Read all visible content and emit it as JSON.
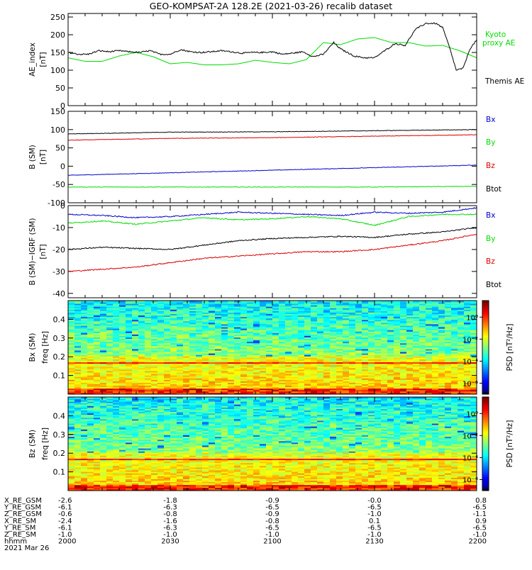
{
  "chart_data": {
    "title": "GEO-KOMPSAT-2A 128.2E (2021-03-26) recalib dataset",
    "x_tick_labels": [
      "2000",
      "2030",
      "2100",
      "2130",
      "2200"
    ],
    "panels": [
      {
        "type": "line",
        "ylabel": [
          "AE_index",
          "[nT]"
        ],
        "ylim": [
          0,
          260
        ],
        "yticks": [
          0,
          50,
          100,
          150,
          200,
          250
        ],
        "series": [
          {
            "name": "Kyoto proxy AE",
            "color": "#00dd00",
            "x": [
              0,
              5,
              10,
              15,
              20,
              25,
              30,
              35,
              40,
              45,
              50,
              55,
              60,
              65,
              70,
              75,
              80,
              85,
              90,
              95,
              100,
              105,
              110,
              115,
              120
            ],
            "values": [
              135,
              125,
              125,
              140,
              150,
              138,
              118,
              122,
              115,
              115,
              118,
              128,
              122,
              118,
              130,
              178,
              172,
              188,
              192,
              178,
              178,
              168,
              170,
              155,
              135
            ]
          },
          {
            "name": "Themis AE",
            "color": "#000000",
            "x": [
              0,
              3,
              6,
              9,
              12,
              15,
              18,
              21,
              24,
              27,
              30,
              33,
              36,
              39,
              42,
              45,
              48,
              51,
              54,
              57,
              60,
              63,
              66,
              69,
              72,
              75,
              78,
              80,
              84,
              87,
              90,
              93,
              96,
              99,
              102,
              105,
              108,
              110,
              112,
              114,
              116,
              118,
              120
            ],
            "values": [
              150,
              145,
              145,
              155,
              152,
              155,
              152,
              150,
              155,
              145,
              145,
              158,
              152,
              150,
              152,
              155,
              152,
              148,
              150,
              150,
              152,
              145,
              148,
              152,
              138,
              145,
              178,
              160,
              140,
              135,
              135,
              155,
              175,
              170,
              215,
              232,
              232,
              220,
              165,
              100,
              105,
              160,
              185
            ]
          }
        ],
        "legend": [
          "Kyoto",
          "proxy AE",
          "Themis AE"
        ]
      },
      {
        "type": "line",
        "ylabel": [
          "B (SM)",
          "[nT]"
        ],
        "ylim": [
          -100,
          150
        ],
        "yticks": [
          -100,
          -50,
          0,
          50,
          100,
          150
        ],
        "series": [
          {
            "name": "Bx",
            "color": "#0000cc",
            "x": [
              0,
              120
            ],
            "values": [
              -25,
              3
            ]
          },
          {
            "name": "By",
            "color": "#00dd00",
            "x": [
              0,
              30,
              60,
              90,
              120
            ],
            "values": [
              -57,
              -57,
              -57,
              -57,
              -55
            ]
          },
          {
            "name": "Bz",
            "color": "#dd0000",
            "x": [
              0,
              30,
              60,
              90,
              120
            ],
            "values": [
              71,
              76,
              78,
              82,
              86
            ]
          },
          {
            "name": "Btot",
            "color": "#000000",
            "x": [
              0,
              30,
              60,
              90,
              120
            ],
            "values": [
              88,
              93,
              94,
              97,
              100
            ]
          }
        ],
        "legend": [
          "Bx",
          "By",
          "Bz",
          "Btot"
        ]
      },
      {
        "type": "line",
        "ylabel": [
          "B (SM)−IGRF (SM)",
          "[nT]"
        ],
        "ylim": [
          -42,
          0
        ],
        "yticks": [
          -40,
          -30,
          -20,
          -10,
          0
        ],
        "series": [
          {
            "name": "Bx",
            "color": "#0000cc",
            "x": [
              0,
              10,
              20,
              30,
              40,
              50,
              60,
              70,
              80,
              90,
              100,
              110,
              120
            ],
            "values": [
              -4,
              -4.5,
              -5.5,
              -5,
              -4,
              -3,
              -3.5,
              -4,
              -4.5,
              -3,
              -3.5,
              -3,
              -1
            ]
          },
          {
            "name": "By",
            "color": "#00dd00",
            "x": [
              0,
              10,
              20,
              30,
              40,
              50,
              60,
              70,
              80,
              90,
              100,
              110,
              120
            ],
            "values": [
              -8,
              -7,
              -8.5,
              -7,
              -5.5,
              -6.5,
              -6,
              -5,
              -6,
              -9,
              -5,
              -4,
              -4
            ]
          },
          {
            "name": "Bz",
            "color": "#dd0000",
            "x": [
              0,
              10,
              20,
              30,
              40,
              50,
              60,
              70,
              80,
              90,
              100,
              110,
              120
            ],
            "values": [
              -30,
              -29,
              -28,
              -26,
              -24,
              -23,
              -22,
              -21,
              -21,
              -20,
              -18,
              -16,
              -13
            ]
          },
          {
            "name": "Btot",
            "color": "#000000",
            "x": [
              0,
              10,
              20,
              30,
              40,
              50,
              60,
              70,
              80,
              90,
              100,
              110,
              120
            ],
            "values": [
              -20,
              -19,
              -19.5,
              -20,
              -18,
              -16,
              -15,
              -14.5,
              -14,
              -14.5,
              -13,
              -12,
              -10
            ]
          }
        ],
        "legend": [
          "Bx",
          "By",
          "Bz",
          "Btot"
        ]
      },
      {
        "type": "heatmap",
        "ylabel": [
          "Bx (SM)",
          "freq [Hz]"
        ],
        "ylim": [
          0,
          0.5
        ],
        "yticks": [
          0.1,
          0.2,
          0.3,
          0.4
        ],
        "colorbar": {
          "label": "PSD [nT²/Hz]",
          "ticks": [
            "10⁰",
            "10⁻²",
            "10⁻⁴",
            "10⁻⁶"
          ],
          "log_range": [
            -7,
            1.5
          ]
        }
      },
      {
        "type": "heatmap",
        "ylabel": [
          "Bz (SM)",
          "freq [Hz]"
        ],
        "ylim": [
          0,
          0.5
        ],
        "yticks": [
          0.1,
          0.2,
          0.3,
          0.4
        ],
        "colorbar": {
          "label": "PSD [nT²/Hz]",
          "ticks": [
            "10⁰",
            "10⁻²",
            "10⁻⁴",
            "10⁻⁶"
          ],
          "log_range": [
            -7,
            1.5
          ]
        }
      }
    ],
    "position_table": {
      "rows": [
        {
          "label": "X_RE_GSM",
          "values": [
            "-2.6",
            "-1.8",
            "-0.9",
            "-0.0",
            "0.8"
          ]
        },
        {
          "label": "Y_RE_GSM",
          "values": [
            "-6.1",
            "-6.3",
            "-6.5",
            "-6.5",
            "-6.5"
          ]
        },
        {
          "label": "Z_RE_GSM",
          "values": [
            "-0.6",
            "-0.8",
            "-0.9",
            "-1.0",
            "-1.1"
          ]
        },
        {
          "label": "X_RE_SM",
          "values": [
            "-2.4",
            "-1.6",
            "-0.8",
            "0.1",
            "0.9"
          ]
        },
        {
          "label": "Y_RE_SM",
          "values": [
            "-6.1",
            "-6.3",
            "-6.5",
            "-6.5",
            "-6.5"
          ]
        },
        {
          "label": "Z_RE_SM",
          "values": [
            "-1.0",
            "-1.0",
            "-1.0",
            "-1.0",
            "-1.0"
          ]
        },
        {
          "label": "hhmm",
          "values": [
            "2000",
            "2030",
            "2100",
            "2130",
            "2200"
          ]
        }
      ],
      "date": "2021 Mar 26"
    }
  }
}
